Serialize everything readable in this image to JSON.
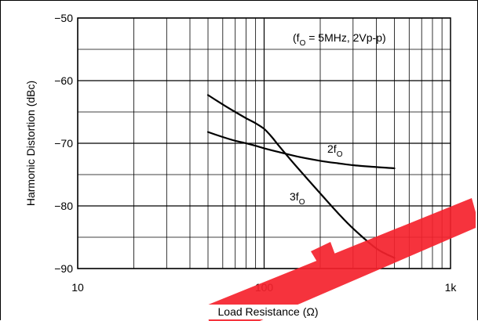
{
  "chart_data": {
    "type": "line",
    "title": "",
    "xlabel": "Load Resistance (Ω)",
    "ylabel": "Harmonic Distortion (dBc)",
    "x_scale": "log",
    "xlim": [
      10,
      1000
    ],
    "ylim": [
      -90,
      -50
    ],
    "x_ticks": [
      "10",
      "100",
      "1k"
    ],
    "y_ticks": [
      "−50",
      "−60",
      "−70",
      "−80",
      "−90"
    ],
    "grid": true,
    "conditions": {
      "prefix": "(f",
      "sub": "O",
      "rest": " = 5MHz, 2Vp-p)"
    },
    "series": [
      {
        "name": "2fO",
        "label_main": "2f",
        "label_sub": "O",
        "x": [
          50,
          60,
          70,
          80,
          90,
          100,
          120,
          150,
          200,
          250,
          300,
          400,
          500
        ],
        "y": [
          -68.2,
          -69.0,
          -69.6,
          -70.0,
          -70.4,
          -70.8,
          -71.4,
          -72.1,
          -72.8,
          -73.2,
          -73.5,
          -73.8,
          -74.0
        ]
      },
      {
        "name": "3fO",
        "label_main": "3f",
        "label_sub": "O",
        "x": [
          50,
          60,
          70,
          80,
          90,
          100,
          110,
          120,
          150,
          200,
          250,
          300,
          400,
          500
        ],
        "y": [
          -62.3,
          -63.8,
          -65.0,
          -66.0,
          -66.8,
          -67.7,
          -69.0,
          -70.4,
          -73.8,
          -78.0,
          -81.2,
          -83.6,
          -86.8,
          -88.3
        ]
      }
    ],
    "line_color": "#000000",
    "grid_color": "#000000",
    "watermark_color": "#f5222d"
  }
}
